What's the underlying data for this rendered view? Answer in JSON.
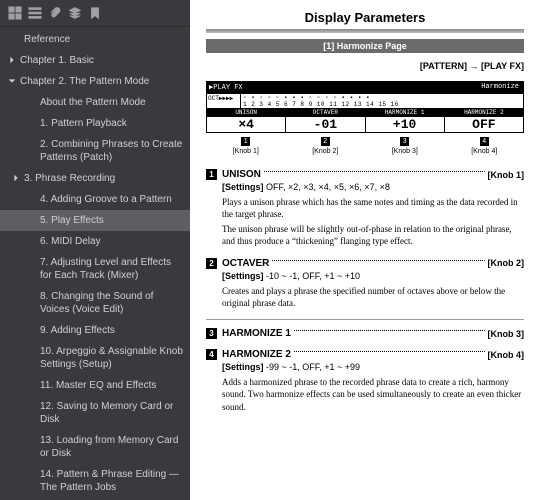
{
  "sidebar": {
    "items": [
      {
        "label": "Reference",
        "expanded": null,
        "indent": 1
      },
      {
        "label": "Chapter 1. Basic",
        "expanded": false,
        "indent": 0
      },
      {
        "label": "Chapter 2. The Pattern Mode",
        "expanded": true,
        "indent": 0
      },
      {
        "label": "About the Pattern Mode",
        "expanded": null,
        "indent": 2
      },
      {
        "label": "1. Pattern Playback",
        "expanded": null,
        "indent": 2
      },
      {
        "label": "2. Combining Phrases to Create Patterns (Patch)",
        "expanded": null,
        "indent": 2
      },
      {
        "label": "3. Phrase Recording",
        "expanded": false,
        "indent": 1
      },
      {
        "label": "4. Adding Groove to a Pattern",
        "expanded": null,
        "indent": 2
      },
      {
        "label": "5. Play Effects",
        "expanded": null,
        "indent": 2,
        "active": true
      },
      {
        "label": "6. MIDI Delay",
        "expanded": null,
        "indent": 2
      },
      {
        "label": "7. Adjusting Level and Effects for Each Track (Mixer)",
        "expanded": null,
        "indent": 2
      },
      {
        "label": "8. Changing the Sound of Voices (Voice Edit)",
        "expanded": null,
        "indent": 2
      },
      {
        "label": "9. Adding Effects",
        "expanded": null,
        "indent": 2
      },
      {
        "label": "10. Arpeggio & Assignable Knob Settings (Setup)",
        "expanded": null,
        "indent": 2
      },
      {
        "label": "11. Master EQ and Effects",
        "expanded": null,
        "indent": 2
      },
      {
        "label": "12. Saving to Memory Card or Disk",
        "expanded": null,
        "indent": 2
      },
      {
        "label": "13. Loading from Memory Card or Disk",
        "expanded": null,
        "indent": 2
      },
      {
        "label": "14. Pattern & Phrase Editing — The Pattern Jobs",
        "expanded": null,
        "indent": 2
      }
    ]
  },
  "page": {
    "title": "Display Parameters",
    "section_bar": "[1] Harmonize Page",
    "breadcrumb": "[PATTERN] → [PLAY FX]",
    "lcd": {
      "top_left": "▶PLAY FX",
      "top_right": "Harmonize",
      "oct_label": "OCT▶▶▶▶",
      "markers": "▫ ▪ ▫ ▫ ▫ ▪ ▪ ▪ ▫ ▫ ▫ ▫ ▪ ▪ ▪ ▪",
      "numbers": "1 2 3 4 5 6 7 8 9 10 11 12 13 14 15 16",
      "labels": [
        "UNISON",
        "OCTAVER",
        "HARMONIZE 1",
        "HARMONIZE 2"
      ],
      "values": [
        "×4",
        "-01",
        "+10",
        "OFF"
      ]
    },
    "knobs": {
      "nums": [
        "1",
        "2",
        "3",
        "4"
      ],
      "labels": [
        "[Knob 1]",
        "[Knob 2]",
        "[Knob 3]",
        "[Knob 4]"
      ]
    },
    "params": [
      {
        "num": "1",
        "name": "UNISON",
        "knob": "[Knob 1]",
        "settings": "OFF,  ×2, ×3, ×4, ×5, ×6, ×7, ×8",
        "desc": [
          "Plays a unison phrase which has the same notes and timing as the data recorded in the target phrase.",
          "The unison phrase will be slightly out-of-phase in relation to the original phrase, and thus produce a “thickening” flanging type effect."
        ]
      },
      {
        "num": "2",
        "name": "OCTAVER",
        "knob": "[Knob 2]",
        "settings": "-10 ~ -1, OFF, +1 ~ +10",
        "desc": [
          "Creates and plays a phrase the specified number of octaves above or below the original phrase data."
        ]
      },
      {
        "num": "3",
        "name": "HARMONIZE 1",
        "knob": "[Knob 3]",
        "settings": null,
        "desc": []
      },
      {
        "num": "4",
        "name": "HARMONIZE 2",
        "knob": "[Knob 4]",
        "settings": "-99 ~ -1, OFF, +1 ~ +99",
        "desc": [
          "Adds a harmonized phrase to the recorded phrase data to create a rich, harmony sound. Two harmonize effects can be used simultaneously to create an even thicker sound."
        ]
      }
    ]
  }
}
